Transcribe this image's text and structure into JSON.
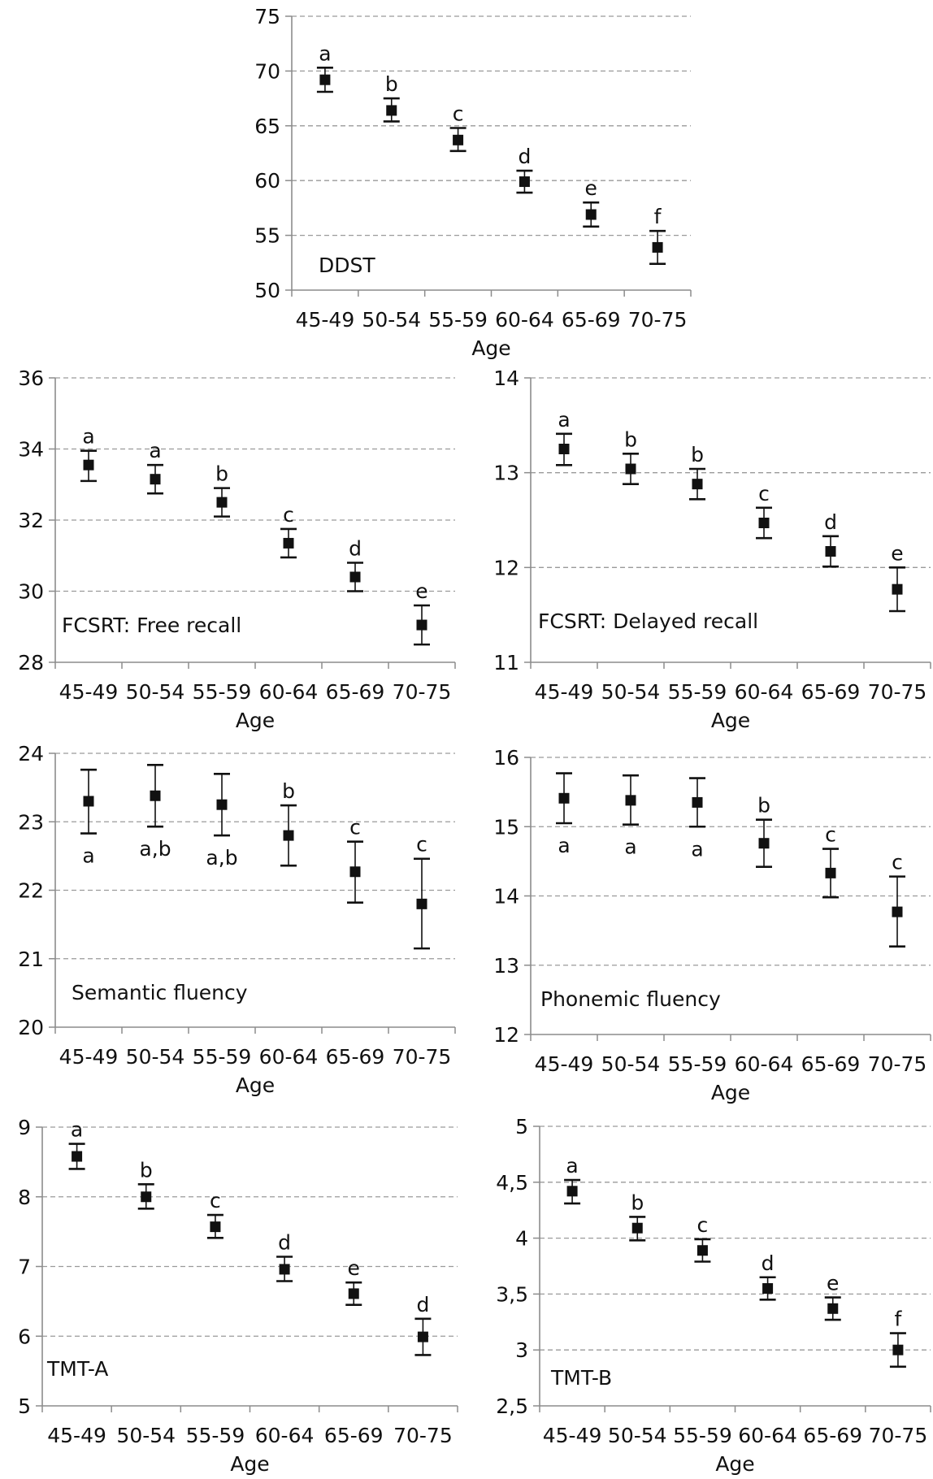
{
  "figure": {
    "categories": [
      "45-49",
      "50-54",
      "55-59",
      "60-64",
      "65-69",
      "70-75"
    ],
    "xlabel": "Age"
  },
  "chart_data": [
    {
      "type": "scatter",
      "title": "DDST",
      "xlabel": "Age",
      "categories": [
        "45-49",
        "50-54",
        "55-59",
        "60-64",
        "65-69",
        "70-75"
      ],
      "ylim": [
        50,
        75
      ],
      "yticks": [
        "50",
        "55",
        "60",
        "65",
        "70",
        "75"
      ],
      "ytick_values": [
        50,
        55,
        60,
        65,
        70,
        75
      ],
      "grid": "horizontal dashed",
      "series": [
        {
          "values": [
            69.2,
            66.4,
            63.7,
            59.9,
            56.9,
            53.9
          ],
          "err_low": [
            68.1,
            65.4,
            62.7,
            58.9,
            55.8,
            52.4
          ],
          "err_high": [
            70.3,
            67.5,
            64.8,
            60.9,
            58.0,
            55.4
          ]
        }
      ],
      "letters": [
        "a",
        "b",
        "c",
        "d",
        "e",
        "f"
      ],
      "letter_position": "above"
    },
    {
      "type": "scatter",
      "title": "FCSRT: Free recall",
      "xlabel": "Age",
      "categories": [
        "45-49",
        "50-54",
        "55-59",
        "60-64",
        "65-69",
        "70-75"
      ],
      "ylim": [
        28,
        36
      ],
      "yticks": [
        "28",
        "30",
        "32",
        "34",
        "36"
      ],
      "ytick_values": [
        28,
        30,
        32,
        34,
        36
      ],
      "grid": "horizontal dashed",
      "series": [
        {
          "values": [
            33.55,
            33.15,
            32.5,
            31.35,
            30.4,
            29.05
          ],
          "err_low": [
            33.1,
            32.75,
            32.1,
            30.95,
            30.0,
            28.5
          ],
          "err_high": [
            33.95,
            33.55,
            32.9,
            31.75,
            30.8,
            29.6
          ]
        }
      ],
      "letters": [
        "a",
        "a",
        "b",
        "c",
        "d",
        "e"
      ],
      "letter_position": "above"
    },
    {
      "type": "scatter",
      "title": "FCSRT: Delayed recall",
      "xlabel": "Age",
      "categories": [
        "45-49",
        "50-54",
        "55-59",
        "60-64",
        "65-69",
        "70-75"
      ],
      "ylim": [
        11,
        14
      ],
      "yticks": [
        "11",
        "12",
        "13",
        "14"
      ],
      "ytick_values": [
        11,
        12,
        13,
        14
      ],
      "grid": "horizontal dashed",
      "series": [
        {
          "values": [
            13.25,
            13.04,
            12.88,
            12.47,
            12.17,
            11.77
          ],
          "err_low": [
            13.08,
            12.88,
            12.72,
            12.31,
            12.01,
            11.54
          ],
          "err_high": [
            13.41,
            13.2,
            13.04,
            12.63,
            12.33,
            12.0
          ]
        }
      ],
      "letters": [
        "a",
        "b",
        "b",
        "c",
        "d",
        "e"
      ],
      "letter_position": "above"
    },
    {
      "type": "scatter",
      "title": "Semantic fluency",
      "xlabel": "Age",
      "categories": [
        "45-49",
        "50-54",
        "55-59",
        "60-64",
        "65-69",
        "70-75"
      ],
      "ylim": [
        20,
        24
      ],
      "yticks": [
        "20",
        "21",
        "22",
        "23",
        "24"
      ],
      "ytick_values": [
        20,
        21,
        22,
        23,
        24
      ],
      "grid": "horizontal dashed",
      "series": [
        {
          "values": [
            23.3,
            23.38,
            23.25,
            22.8,
            22.27,
            21.8
          ],
          "err_low": [
            22.83,
            22.93,
            22.8,
            22.36,
            21.82,
            21.15
          ],
          "err_high": [
            23.76,
            23.83,
            23.7,
            23.24,
            22.71,
            22.46
          ]
        }
      ],
      "letters": [
        "a",
        "a,b",
        "a,b",
        "b",
        "c",
        "c"
      ],
      "letter_position": [
        "below",
        "below",
        "below",
        "above",
        "above",
        "above"
      ]
    },
    {
      "type": "scatter",
      "title": "Phonemic fluency",
      "xlabel": "Age",
      "categories": [
        "45-49",
        "50-54",
        "55-59",
        "60-64",
        "65-69",
        "70-75"
      ],
      "ylim": [
        12,
        16
      ],
      "yticks": [
        "12",
        "13",
        "14",
        "15",
        "16"
      ],
      "ytick_values": [
        12,
        13,
        14,
        15,
        16
      ],
      "grid": "horizontal dashed",
      "series": [
        {
          "values": [
            15.41,
            15.38,
            15.35,
            14.76,
            14.33,
            13.77
          ],
          "err_low": [
            15.05,
            15.03,
            15.0,
            14.42,
            13.98,
            13.27
          ],
          "err_high": [
            15.77,
            15.74,
            15.7,
            15.1,
            14.68,
            14.28
          ]
        }
      ],
      "letters": [
        "a",
        "a",
        "a",
        "b",
        "c",
        "c"
      ],
      "letter_position": [
        "below",
        "below",
        "below",
        "above",
        "above",
        "above"
      ]
    },
    {
      "type": "scatter",
      "title": "TMT-A",
      "xlabel": "Age",
      "categories": [
        "45-49",
        "50-54",
        "55-59",
        "60-64",
        "65-69",
        "70-75"
      ],
      "ylim": [
        5,
        9
      ],
      "yticks": [
        "5",
        "6",
        "7",
        "8",
        "9"
      ],
      "ytick_values": [
        5,
        6,
        7,
        8,
        9
      ],
      "grid": "horizontal dashed",
      "series": [
        {
          "values": [
            8.58,
            8.0,
            7.57,
            6.96,
            6.61,
            5.99
          ],
          "err_low": [
            8.4,
            7.83,
            7.41,
            6.79,
            6.45,
            5.73
          ],
          "err_high": [
            8.76,
            8.18,
            7.74,
            7.14,
            6.77,
            6.25
          ]
        }
      ],
      "letters": [
        "a",
        "b",
        "c",
        "d",
        "e",
        "d"
      ],
      "letter_position": "above"
    },
    {
      "type": "scatter",
      "title": "TMT-B",
      "xlabel": "Age",
      "categories": [
        "45-49",
        "50-54",
        "55-59",
        "60-64",
        "65-69",
        "70-75"
      ],
      "ylim": [
        2.5,
        5
      ],
      "yticks": [
        "2,5",
        "3",
        "3,5",
        "4",
        "4,5",
        "5"
      ],
      "ytick_values": [
        2.5,
        3,
        3.5,
        4,
        4.5,
        5
      ],
      "grid": "horizontal dashed",
      "series": [
        {
          "values": [
            4.42,
            4.09,
            3.89,
            3.55,
            3.37,
            3.0
          ],
          "err_low": [
            4.31,
            3.98,
            3.79,
            3.45,
            3.27,
            2.85
          ],
          "err_high": [
            4.52,
            4.19,
            3.99,
            3.65,
            3.47,
            3.15
          ]
        }
      ],
      "letters": [
        "a",
        "b",
        "c",
        "d",
        "e",
        "f"
      ],
      "letter_position": "above"
    }
  ]
}
